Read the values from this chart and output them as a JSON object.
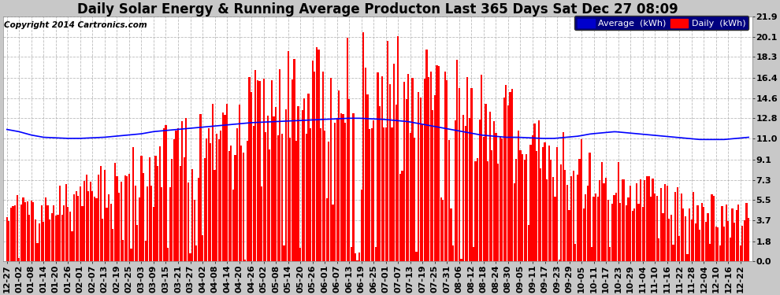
{
  "title": "Daily Solar Energy & Running Average Producton Last 365 Days Sat Dec 27 08:09",
  "copyright": "Copyright 2014 Cartronics.com",
  "legend_average": "Average  (kWh)",
  "legend_daily": "Daily  (kWh)",
  "bar_color": "#ff0000",
  "average_line_color": "#0000ff",
  "background_color": "#c8c8c8",
  "plot_background_color": "#ffffff",
  "grid_color": "#aaaaaa",
  "yticks": [
    0.0,
    1.8,
    3.7,
    5.5,
    7.3,
    9.1,
    11.0,
    12.8,
    14.6,
    16.4,
    18.3,
    20.1,
    21.9
  ],
  "ylim": [
    0.0,
    21.9
  ],
  "n_bars": 365,
  "x_tick_labels": [
    "12-27",
    "01-02",
    "01-08",
    "01-14",
    "01-20",
    "01-26",
    "02-01",
    "02-07",
    "02-13",
    "02-19",
    "02-25",
    "03-03",
    "03-09",
    "03-15",
    "03-21",
    "03-27",
    "04-02",
    "04-08",
    "04-14",
    "04-20",
    "04-26",
    "05-02",
    "05-08",
    "05-14",
    "05-20",
    "05-26",
    "06-01",
    "06-07",
    "06-13",
    "06-19",
    "06-25",
    "07-01",
    "07-07",
    "07-13",
    "07-19",
    "07-25",
    "07-31",
    "08-06",
    "08-12",
    "08-18",
    "08-24",
    "08-30",
    "09-05",
    "09-11",
    "09-17",
    "09-23",
    "09-29",
    "10-05",
    "10-11",
    "10-17",
    "10-23",
    "10-29",
    "11-04",
    "11-10",
    "11-16",
    "11-22",
    "11-28",
    "12-04",
    "12-10",
    "12-16",
    "12-22"
  ],
  "title_fontsize": 12,
  "tick_fontsize": 8,
  "copyright_fontsize": 7.5,
  "avg_curve": [
    11.8,
    11.6,
    11.3,
    11.1,
    11.05,
    11.0,
    11.0,
    11.05,
    11.1,
    11.2,
    11.3,
    11.4,
    11.6,
    11.7,
    11.8,
    11.9,
    12.0,
    12.1,
    12.2,
    12.3,
    12.4,
    12.45,
    12.5,
    12.55,
    12.6,
    12.65,
    12.7,
    12.75,
    12.8,
    12.8,
    12.75,
    12.7,
    12.6,
    12.5,
    12.3,
    12.1,
    11.9,
    11.7,
    11.5,
    11.3,
    11.2,
    11.1,
    11.1,
    11.05,
    11.0,
    11.0,
    11.1,
    11.2,
    11.4,
    11.5,
    11.6,
    11.5,
    11.4,
    11.3,
    11.2,
    11.1,
    11.0,
    10.9,
    10.9,
    10.9,
    11.0,
    11.1
  ]
}
